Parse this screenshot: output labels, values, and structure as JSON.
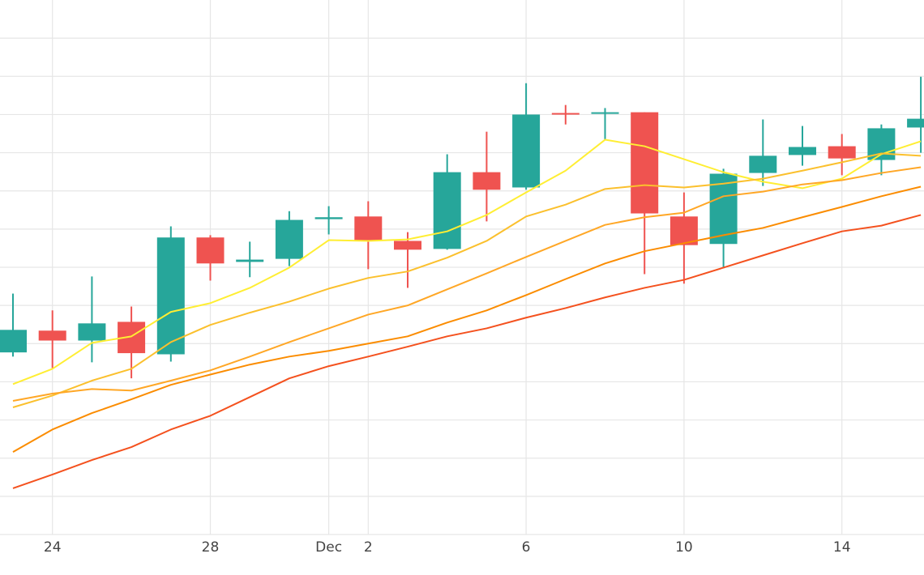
{
  "chart_data": {
    "type": "candlestick",
    "categories": [
      null,
      "24",
      null,
      null,
      null,
      "28",
      null,
      null,
      "Dec",
      "2",
      null,
      null,
      null,
      "6",
      null,
      null,
      null,
      "10",
      null,
      null,
      null,
      "14",
      null,
      null
    ],
    "open": [
      47.7,
      53.4,
      50.8,
      55.7,
      47.2,
      77.8,
      71.4,
      72.2,
      82.6,
      83.3,
      76.9,
      74.8,
      94.9,
      90.9,
      110.4,
      110.2,
      110.6,
      83.3,
      76.1,
      94.7,
      99.4,
      101.7,
      98.1,
      106.6
    ],
    "high": [
      63.1,
      58.7,
      67.6,
      59.7,
      80.7,
      78.4,
      76.7,
      84.7,
      86.0,
      87.3,
      79.2,
      99.6,
      105.5,
      118.2,
      112.5,
      111.7,
      110.6,
      89.6,
      95.8,
      108.7,
      107.0,
      104.9,
      107.4,
      119.9
    ],
    "low": [
      46.6,
      43.6,
      45.1,
      40.9,
      45.3,
      66.5,
      67.4,
      70.3,
      78.6,
      69.5,
      64.6,
      74.6,
      82.0,
      90.3,
      107.4,
      103.4,
      68.2,
      65.7,
      69.7,
      91.3,
      96.6,
      94.1,
      94.1,
      100.0
    ],
    "close": [
      53.6,
      50.8,
      55.3,
      47.5,
      77.8,
      71.0,
      72.0,
      82.4,
      83.1,
      77.1,
      74.6,
      94.9,
      90.3,
      110.0,
      110.0,
      110.6,
      84.1,
      75.8,
      94.5,
      99.2,
      101.5,
      98.5,
      106.4,
      108.9
    ],
    "increasing_color": "#26a69a",
    "decreasing_color": "#ef5350",
    "lines": [
      {
        "color": "#ffee33",
        "values": [
          39.4,
          43.4,
          50.2,
          51.9,
          58.3,
          60.6,
          64.6,
          69.9,
          77.1,
          76.9,
          77.3,
          79.4,
          83.7,
          89.6,
          95.3,
          103.4,
          101.7,
          98.3,
          94.9,
          92.4,
          90.7,
          93.2,
          99.6,
          103.0
        ]
      },
      {
        "color": "#fbc02d",
        "values": [
          33.3,
          36.4,
          40.3,
          43.4,
          50.4,
          54.9,
          58.1,
          61.0,
          64.4,
          67.2,
          68.9,
          72.5,
          76.9,
          83.3,
          86.4,
          90.5,
          91.5,
          90.9,
          91.9,
          93.2,
          95.3,
          97.5,
          99.8,
          99.2
        ]
      },
      {
        "color": "#ffa726",
        "values": [
          35.0,
          36.9,
          38.1,
          37.7,
          40.3,
          43.0,
          46.6,
          50.4,
          54.0,
          57.6,
          60.0,
          64.2,
          68.4,
          72.7,
          76.9,
          81.1,
          83.1,
          84.3,
          88.6,
          89.8,
          91.7,
          92.8,
          94.7,
          96.2
        ]
      },
      {
        "color": "#fb8c00",
        "values": [
          21.6,
          27.5,
          31.8,
          35.4,
          39.2,
          41.9,
          44.5,
          46.6,
          48.1,
          50.0,
          51.9,
          55.5,
          58.7,
          62.7,
          66.9,
          71.0,
          74.2,
          76.3,
          78.4,
          80.3,
          83.1,
          85.8,
          88.6,
          91.1
        ]
      },
      {
        "color": "#f4511e",
        "values": [
          12.1,
          15.7,
          19.5,
          22.9,
          27.5,
          31.1,
          36.0,
          40.9,
          44.1,
          46.6,
          49.2,
          51.9,
          54.0,
          56.8,
          59.3,
          62.1,
          64.6,
          66.7,
          69.9,
          73.1,
          76.3,
          79.4,
          80.9,
          83.7
        ]
      }
    ],
    "ylim": [
      0,
      140
    ],
    "yticks": [
      0,
      10,
      20,
      30,
      40,
      50,
      60,
      70,
      80,
      90,
      100,
      110,
      120,
      130
    ],
    "grid": true
  }
}
